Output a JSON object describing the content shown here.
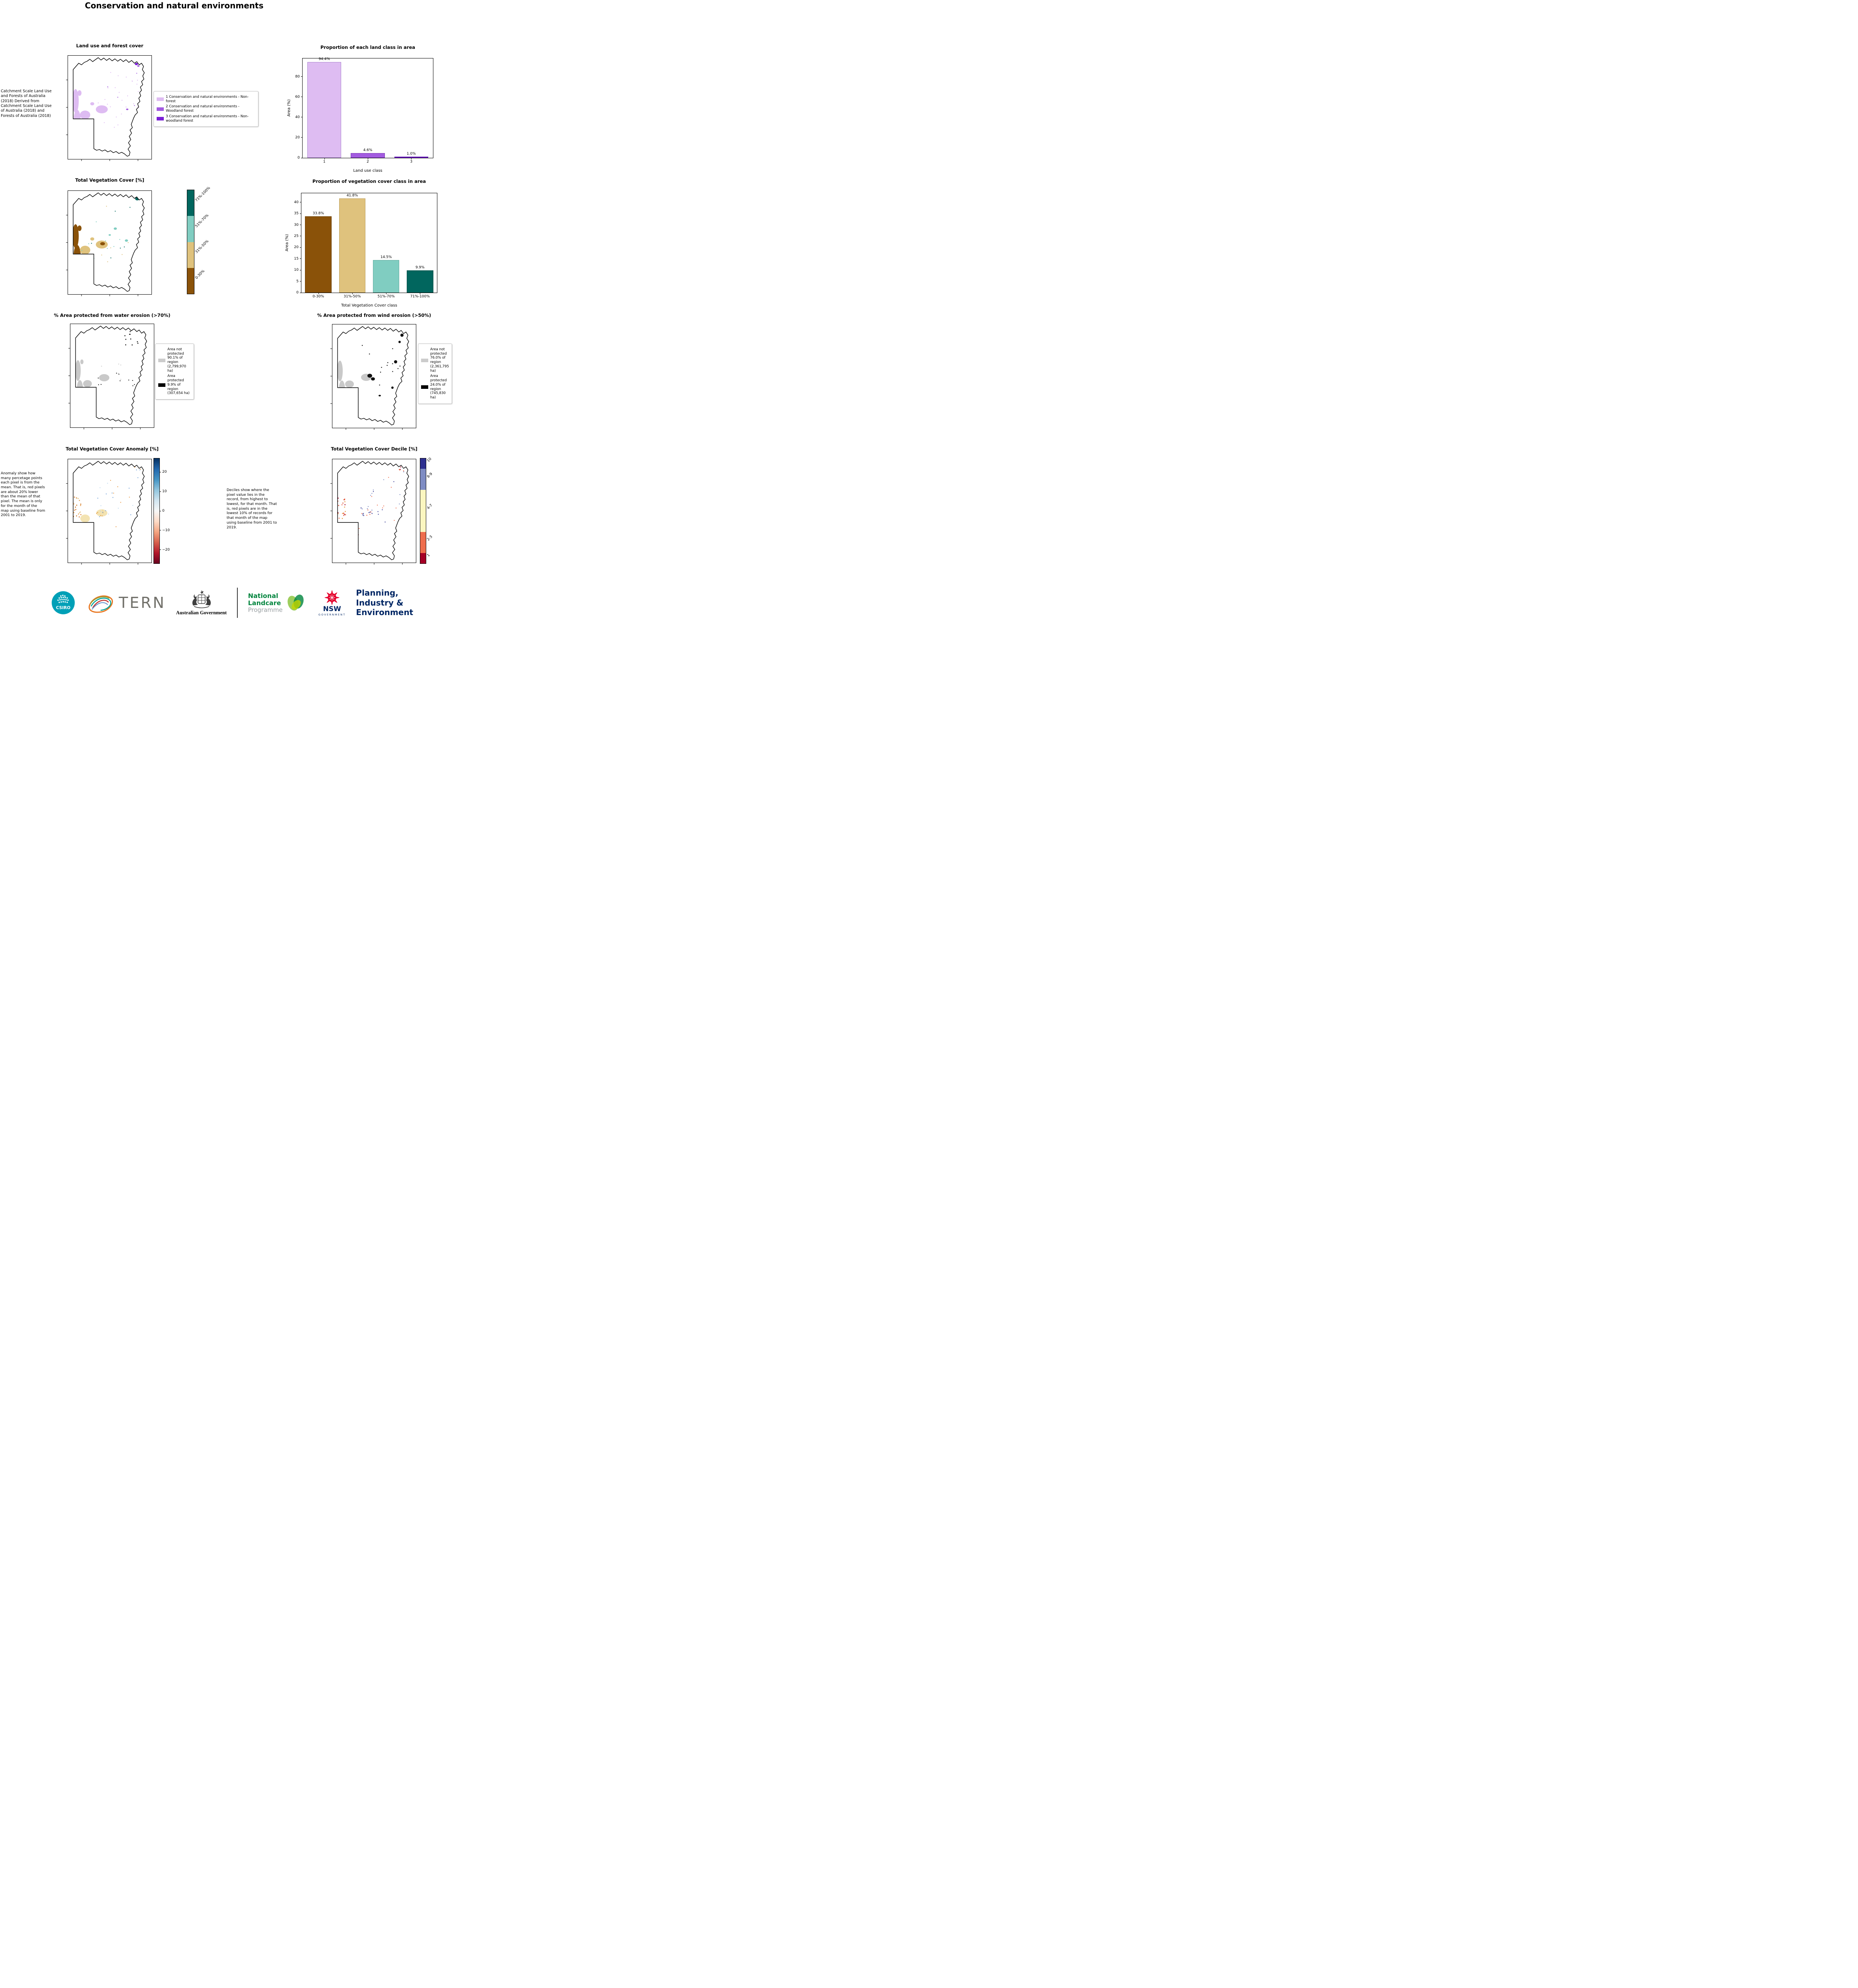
{
  "page": {
    "title": "Conservation and natural environments"
  },
  "panels": {
    "land_use": {
      "title": "Land use and forest cover",
      "side_note": "Catchment Scale Land Use and Forests of Australia (2018) Derived from Catchment Scale Land Use of Australia (2018) and Forests of Australia (2018)",
      "legend": [
        {
          "label": "1 Conservation and natural environments - Non-forest",
          "color": "#debcf2"
        },
        {
          "label": "2 Conservation and natural environments - Woodland forest",
          "color": "#a35be0"
        },
        {
          "label": "3 Conservation and natural environments - Non-woodland forest",
          "color": "#7a1fd6"
        }
      ]
    },
    "vegetation": {
      "title": "Total Vegetation Cover [%]",
      "colorbar": [
        {
          "label": "71%-100%",
          "color": "#01665e"
        },
        {
          "label": "51%-70%",
          "color": "#80cdc1"
        },
        {
          "label": "31%-50%",
          "color": "#dfc27d"
        },
        {
          "label": "0-30%",
          "color": "#8a5209"
        }
      ]
    },
    "water_erosion": {
      "title": "% Area protected from water erosion (>70%)",
      "legend": [
        {
          "label": "Area not protected 90.1% of region (2,799,970 ha)",
          "color": "#cccccc"
        },
        {
          "label": "Area protected 9.9% of region (307,654 ha)",
          "color": "#000000"
        }
      ]
    },
    "wind_erosion": {
      "title": "% Area protected from wind erosion (>50%)",
      "legend": [
        {
          "label": "Area not protected 76.0% of region (2,361,795 ha)",
          "color": "#cccccc"
        },
        {
          "label": "Area protected 24.0% of region (745,830 ha)",
          "color": "#000000"
        }
      ]
    },
    "anomaly": {
      "title": "Total Vegetation Cover Anomaly [%]",
      "side_note": "Anomaly show how many percetage points each pixel is from the mean. That is, red pixels are about 20% lower than the mean of that pixel. The mean is only for the month of the map using baseline from 2001 to 2019.",
      "colorbar_ticks": [
        "20",
        "10",
        "0",
        "−10",
        "−20"
      ]
    },
    "decile": {
      "title": "Total Vegetation Cover Decile [%]",
      "side_note": "Deciles show where the pixel value lies in the record, from highest to lowest, for that month. That is, red pixels are in the lowest 10% of records for that month of the map using baseline from 2001 to 2019.",
      "colorbar": [
        {
          "label": "10",
          "color": "#2d2f8f",
          "pct": 10
        },
        {
          "label": "8-9",
          "color": "#7e8cc3",
          "pct": 20
        },
        {
          "label": "4-7",
          "color": "#fbf6c0",
          "pct": 40
        },
        {
          "label": "2-3",
          "color": "#ee6e4d",
          "pct": 20
        },
        {
          "label": "1",
          "color": "#a50026",
          "pct": 10
        }
      ]
    }
  },
  "chart_data": [
    {
      "type": "bar",
      "title": "Proportion of each land class in area",
      "xlabel": "Land use class",
      "ylabel": "Area (%)",
      "categories": [
        "1",
        "2",
        "3"
      ],
      "values": [
        94.4,
        4.6,
        1.0
      ],
      "bar_labels": [
        "94.4%",
        "4.6%",
        "1.0%"
      ],
      "colors": [
        "#debcf2",
        "#a35be0",
        "#7a1fd6"
      ],
      "edge_colors": [
        "#a983cf",
        "#7b3cb0",
        "#5a12a8"
      ],
      "ylim": [
        0,
        98
      ],
      "yticks": [
        0,
        20,
        40,
        60,
        80
      ],
      "legend_position": "none",
      "grid": false
    },
    {
      "type": "bar",
      "title": "Proportion of vegetation cover class in area",
      "xlabel": "Total Vegetation Cover class",
      "ylabel": "Area (%)",
      "categories": [
        "0-30%",
        "31%-50%",
        "51%-70%",
        "71%-100%"
      ],
      "values": [
        33.8,
        41.8,
        14.5,
        9.9
      ],
      "bar_labels": [
        "33.8%",
        "41.8%",
        "14.5%",
        "9.9%"
      ],
      "colors": [
        "#8a5209",
        "#dfc27d",
        "#80cdc1",
        "#01665e"
      ],
      "edge_colors": [
        "#6b3f06",
        "#bda05e",
        "#62ab9f",
        "#014c45"
      ],
      "ylim": [
        0,
        44
      ],
      "yticks": [
        0,
        5,
        10,
        15,
        20,
        25,
        30,
        35,
        40
      ],
      "legend_position": "none",
      "grid": false
    }
  ],
  "footer": {
    "csiro_label": "CSIRO",
    "tern_label": "TERN",
    "aus_gov_label": "Australian Government",
    "landcare": {
      "line1": "National",
      "line2": "Landcare",
      "line3": "Programme"
    },
    "nsw": {
      "label": "NSW",
      "sub": "GOVERNMENT"
    },
    "dpie": {
      "line1": "Planning,",
      "line2": "Industry &",
      "line3": "Environment"
    }
  }
}
